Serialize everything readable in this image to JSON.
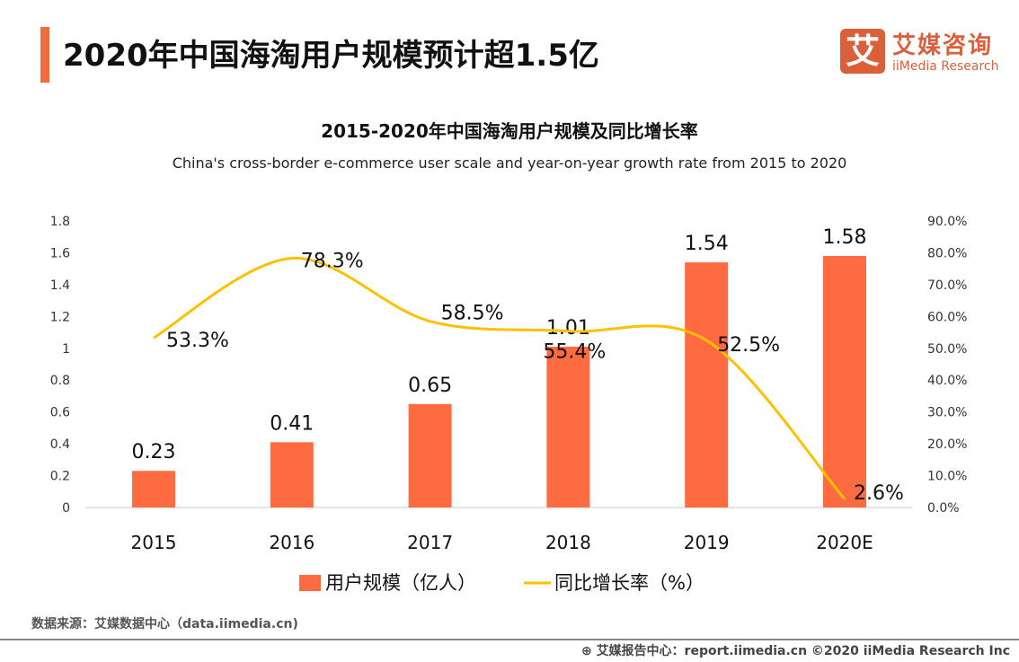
{
  "header": {
    "title": "2020年中国海淘用户规模预计超1.5亿",
    "logo_cn": "艾媒咨询",
    "logo_en": "iiMedia Research",
    "logo_mark": "艾"
  },
  "chart_data": {
    "type": "bar+line",
    "title": "2015-2020年中国海淘用户规模及同比增长率",
    "subtitle": "China's cross-border e-commerce user scale and year-on-year growth rate from 2015 to 2020",
    "categories": [
      "2015",
      "2016",
      "2017",
      "2018",
      "2019",
      "2020E"
    ],
    "series": [
      {
        "name": "用户规模（亿人）",
        "type": "bar",
        "axis": "left",
        "values": [
          0.23,
          0.41,
          0.65,
          1.01,
          1.54,
          1.58
        ],
        "labels": [
          "0.23",
          "0.41",
          "0.65",
          "1.01",
          "1.54",
          "1.58"
        ],
        "color": "#FF6B40"
      },
      {
        "name": "同比增长率（%）",
        "type": "line",
        "axis": "right",
        "values": [
          53.3,
          78.3,
          58.5,
          55.4,
          52.5,
          2.6
        ],
        "labels": [
          "53.3%",
          "78.3%",
          "58.5%",
          "55.4%",
          "52.5%",
          "2.6%"
        ],
        "color": "#FFC000"
      }
    ],
    "left_axis": {
      "ylim": [
        0,
        1.8
      ],
      "ticks": [
        "0",
        "0.2",
        "0.4",
        "0.6",
        "0.8",
        "1",
        "1.2",
        "1.4",
        "1.6",
        "1.8"
      ]
    },
    "right_axis": {
      "ylim": [
        0,
        90
      ],
      "ticks": [
        "0.0%",
        "10.0%",
        "20.0%",
        "30.0%",
        "40.0%",
        "50.0%",
        "60.0%",
        "70.0%",
        "80.0%",
        "90.0%"
      ]
    },
    "grid": false,
    "legend": "bottom"
  },
  "footer": {
    "source": "数据来源：艾媒数据中心（data.iimedia.cn)",
    "copyright": "艾媒报告中心：report.iimedia.cn   ©2020  iiMedia Research  Inc"
  }
}
